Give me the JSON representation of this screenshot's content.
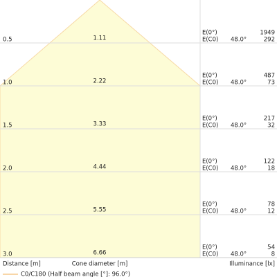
{
  "rows": [
    {
      "distance": "0.5",
      "diameter": "1.11",
      "e0_label": "E(0°)",
      "ec0_label": "E(C0)",
      "angle": "48.0°",
      "e0": "1949",
      "ec0": "292"
    },
    {
      "distance": "1.0",
      "diameter": "2.22",
      "e0_label": "E(0°)",
      "ec0_label": "E(C0)",
      "angle": "48.0°",
      "e0": "487",
      "ec0": "73"
    },
    {
      "distance": "1.5",
      "diameter": "3.33",
      "e0_label": "E(0°)",
      "ec0_label": "E(C0)",
      "angle": "48.0°",
      "e0": "217",
      "ec0": "32"
    },
    {
      "distance": "2.0",
      "diameter": "4.44",
      "e0_label": "E(0°)",
      "ec0_label": "E(C0)",
      "angle": "48.0°",
      "e0": "122",
      "ec0": "18"
    },
    {
      "distance": "2.5",
      "diameter": "5.55",
      "e0_label": "E(0°)",
      "ec0_label": "E(C0)",
      "angle": "48.0°",
      "e0": "78",
      "ec0": "12"
    },
    {
      "distance": "3.0",
      "diameter": "6.66",
      "e0_label": "E(0°)",
      "ec0_label": "E(C0)",
      "angle": "48.0°",
      "e0": "54",
      "ec0": "8"
    }
  ],
  "footer": {
    "distance": "Distance [m]",
    "diameter": "Cone diameter [m]",
    "illuminance": "Illuminance [lx]"
  },
  "legend": {
    "label": "C0/C180 (Half beam angle [°]: 96.0°)"
  }
}
